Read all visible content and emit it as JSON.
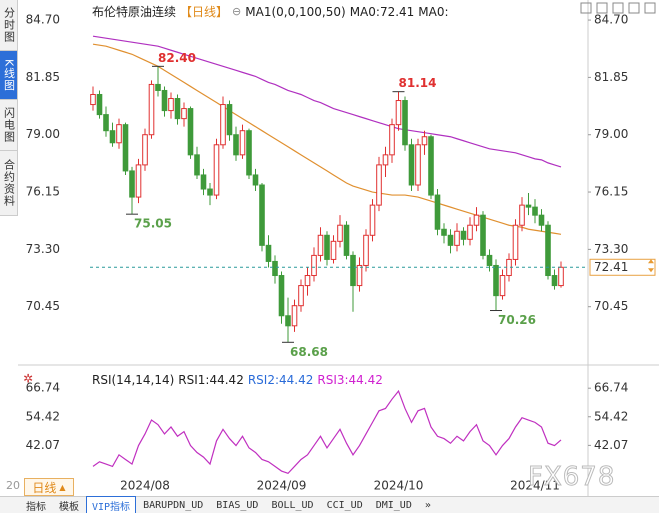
{
  "sidebar": {
    "tabs": [
      "分时图",
      "K线图",
      "闪电图",
      "合约资料"
    ]
  },
  "chart_data": [
    {
      "type": "candlestick",
      "title": "布伦特原油连续",
      "period": "【日线】",
      "indicator_labels": [
        "MA1(0,0,100,50)",
        "MA0:72.41",
        "MA0:"
      ],
      "up_color": "#e03030",
      "down_color": "#3f9a3a",
      "ylim": [
        67.8,
        85.3
      ],
      "yticks": [
        {
          "value": 84.7,
          "label": "84.70"
        },
        81.85,
        {
          "value": 79.0,
          "label": "79.00"
        },
        76.15,
        {
          "value": 73.3,
          "label": "73.30"
        },
        70.45
      ],
      "grid": false,
      "candles": [
        [
          80.5,
          81.4,
          80.2,
          81.0
        ],
        [
          81.0,
          81.2,
          79.8,
          80.0
        ],
        [
          80.0,
          80.4,
          78.9,
          79.2
        ],
        [
          79.2,
          79.6,
          78.4,
          78.6
        ],
        [
          78.6,
          79.8,
          78.3,
          79.5
        ],
        [
          79.5,
          79.6,
          77.0,
          77.2
        ],
        [
          77.2,
          77.4,
          75.05,
          75.9
        ],
        [
          75.9,
          77.8,
          75.6,
          77.5
        ],
        [
          77.5,
          79.3,
          77.2,
          79.0
        ],
        [
          79.0,
          81.7,
          78.8,
          81.5
        ],
        [
          81.5,
          82.4,
          80.9,
          81.2
        ],
        [
          81.2,
          81.4,
          79.9,
          80.2
        ],
        [
          80.2,
          81.1,
          79.8,
          80.8
        ],
        [
          80.8,
          81.0,
          79.5,
          79.8
        ],
        [
          79.8,
          80.6,
          79.4,
          80.3
        ],
        [
          80.3,
          80.4,
          77.8,
          78.0
        ],
        [
          78.0,
          78.4,
          76.8,
          77.0
        ],
        [
          77.0,
          77.3,
          76.0,
          76.3
        ],
        [
          76.3,
          76.6,
          75.5,
          76.0
        ],
        [
          76.0,
          78.8,
          75.8,
          78.5
        ],
        [
          78.5,
          80.9,
          78.3,
          80.5
        ],
        [
          80.5,
          80.7,
          78.7,
          79.0
        ],
        [
          79.0,
          79.4,
          77.7,
          78.0
        ],
        [
          78.0,
          79.5,
          77.8,
          79.2
        ],
        [
          79.2,
          79.3,
          76.8,
          77.0
        ],
        [
          77.0,
          77.3,
          76.2,
          76.5
        ],
        [
          76.5,
          76.6,
          73.2,
          73.5
        ],
        [
          73.5,
          74.0,
          72.4,
          72.7
        ],
        [
          72.7,
          73.0,
          71.6,
          72.0
        ],
        [
          72.0,
          72.2,
          69.6,
          70.0
        ],
        [
          70.0,
          70.9,
          68.68,
          69.5
        ],
        [
          69.5,
          70.8,
          69.2,
          70.5
        ],
        [
          70.5,
          71.8,
          70.2,
          71.5
        ],
        [
          71.5,
          72.4,
          71.0,
          72.0
        ],
        [
          72.0,
          73.4,
          71.7,
          73.0
        ],
        [
          73.0,
          74.4,
          72.7,
          74.0
        ],
        [
          74.0,
          74.2,
          72.5,
          72.8
        ],
        [
          72.8,
          74.0,
          72.6,
          73.7
        ],
        [
          73.7,
          75.0,
          73.4,
          74.5
        ],
        [
          74.5,
          74.7,
          72.8,
          73.0
        ],
        [
          73.0,
          73.2,
          70.2,
          71.5
        ],
        [
          71.5,
          72.9,
          71.2,
          72.5
        ],
        [
          72.5,
          74.3,
          72.2,
          74.0
        ],
        [
          74.0,
          75.8,
          73.7,
          75.5
        ],
        [
          75.5,
          77.9,
          75.2,
          77.5
        ],
        [
          77.5,
          78.4,
          76.9,
          78.0
        ],
        [
          78.0,
          79.8,
          77.6,
          79.5
        ],
        [
          79.5,
          81.14,
          79.2,
          80.7
        ],
        [
          80.7,
          80.9,
          78.2,
          78.5
        ],
        [
          78.5,
          78.8,
          76.2,
          76.5
        ],
        [
          76.5,
          78.8,
          76.2,
          78.5
        ],
        [
          78.5,
          79.2,
          78.0,
          78.9
        ],
        [
          78.9,
          79.0,
          75.8,
          76.0
        ],
        [
          76.0,
          76.3,
          74.0,
          74.3
        ],
        [
          74.3,
          74.6,
          73.6,
          74.0
        ],
        [
          74.0,
          74.3,
          73.1,
          73.5
        ],
        [
          73.5,
          74.6,
          73.2,
          74.2
        ],
        [
          74.2,
          74.4,
          73.5,
          73.8
        ],
        [
          73.8,
          74.9,
          73.5,
          74.5
        ],
        [
          74.5,
          75.4,
          74.2,
          75.0
        ],
        [
          75.0,
          75.2,
          72.8,
          73.0
        ],
        [
          73.0,
          73.3,
          72.2,
          72.5
        ],
        [
          72.5,
          72.8,
          70.26,
          71.0
        ],
        [
          71.0,
          72.3,
          70.8,
          72.0
        ],
        [
          72.0,
          73.1,
          71.7,
          72.8
        ],
        [
          72.8,
          74.8,
          72.5,
          74.5
        ],
        [
          74.5,
          75.9,
          74.2,
          75.5
        ],
        [
          75.5,
          76.1,
          75.0,
          75.4
        ],
        [
          75.4,
          75.8,
          74.6,
          75.0
        ],
        [
          75.0,
          75.3,
          74.2,
          74.5
        ],
        [
          74.5,
          74.7,
          71.8,
          72.0
        ],
        [
          72.0,
          72.3,
          71.3,
          71.5
        ],
        [
          71.5,
          72.7,
          71.4,
          72.41
        ]
      ],
      "series": [
        {
          "color": "#b030c0",
          "values": [
            83.9,
            83.85,
            83.8,
            83.75,
            83.7,
            83.65,
            83.6,
            83.55,
            83.5,
            83.45,
            83.4,
            83.3,
            83.2,
            83.1,
            83.0,
            82.9,
            82.8,
            82.7,
            82.6,
            82.5,
            82.4,
            82.3,
            82.2,
            82.1,
            82.0,
            81.9,
            81.75,
            81.6,
            81.5,
            81.35,
            81.2,
            81.1,
            81.0,
            80.85,
            80.7,
            80.6,
            80.45,
            80.3,
            80.2,
            80.1,
            80.0,
            79.9,
            79.8,
            79.7,
            79.6,
            79.5,
            79.4,
            79.3,
            79.25,
            79.2,
            79.15,
            79.1,
            79.05,
            79.0,
            78.95,
            78.9,
            78.8,
            78.7,
            78.6,
            78.5,
            78.4,
            78.3,
            78.25,
            78.2,
            78.15,
            78.1,
            78.0,
            77.9,
            77.8,
            77.75,
            77.6,
            77.5,
            77.4
          ]
        },
        {
          "color": "#e09030",
          "values": [
            83.5,
            83.45,
            83.4,
            83.3,
            83.2,
            83.1,
            83.0,
            82.85,
            82.7,
            82.55,
            82.4,
            82.2,
            82.0,
            81.8,
            81.6,
            81.4,
            81.2,
            81.0,
            80.8,
            80.6,
            80.4,
            80.2,
            80.0,
            79.8,
            79.6,
            79.4,
            79.2,
            79.0,
            78.8,
            78.6,
            78.4,
            78.2,
            78.0,
            77.8,
            77.6,
            77.4,
            77.2,
            77.0,
            76.8,
            76.6,
            76.45,
            76.35,
            76.25,
            76.15,
            76.1,
            76.05,
            76.0,
            76.0,
            76.0,
            75.95,
            75.9,
            75.8,
            75.7,
            75.6,
            75.5,
            75.4,
            75.3,
            75.2,
            75.1,
            75.0,
            74.9,
            74.8,
            74.7,
            74.6,
            74.5,
            74.45,
            74.4,
            74.3,
            74.25,
            74.2,
            74.15,
            74.1,
            74.05
          ]
        }
      ],
      "annotations": [
        {
          "value": 82.4,
          "label": "82.40",
          "color": "#e03030"
        },
        {
          "value": 75.05,
          "label": "75.05",
          "color": "#5aa04a"
        },
        {
          "value": 68.68,
          "label": "68.68",
          "color": "#5aa04a"
        },
        {
          "value": 81.14,
          "label": "81.14",
          "color": "#e03030"
        },
        {
          "value": 70.26,
          "label": "70.26",
          "color": "#5aa04a"
        }
      ]
    },
    {
      "type": "line",
      "title": "RSI(14,14,14)",
      "legend": [
        {
          "text": "RSI1:44.42",
          "color": "#222222"
        },
        {
          "text": "RSI2:44.42",
          "color": "#2a6bd8"
        },
        {
          "text": "RSI3:44.42",
          "color": "#d020d0"
        }
      ],
      "ylim": [
        28,
        72
      ],
      "yticks": [
        66.74,
        54.42,
        42.07
      ],
      "categories": [
        null,
        null,
        null,
        null,
        null,
        null,
        null,
        null,
        "2024/08",
        null,
        null,
        null,
        null,
        null,
        null,
        null,
        null,
        null,
        null,
        null,
        null,
        null,
        null,
        null,
        null,
        null,
        null,
        null,
        null,
        "2024/09",
        null,
        null,
        null,
        null,
        null,
        null,
        null,
        null,
        null,
        null,
        null,
        null,
        null,
        null,
        null,
        null,
        null,
        "2024/10",
        null,
        null,
        null,
        null,
        null,
        null,
        null,
        null,
        null,
        null,
        null,
        null,
        null,
        null,
        null,
        null,
        null,
        null,
        null,
        null,
        "2024/11",
        null,
        null,
        null,
        null
      ],
      "series": [
        {
          "color": "#c030c0",
          "values": [
            33,
            35,
            34,
            33,
            38,
            36,
            34,
            42,
            47,
            53,
            51,
            47,
            50,
            46,
            48,
            42,
            39,
            37,
            34,
            44,
            49,
            45,
            42,
            46,
            41,
            39,
            36,
            35,
            33,
            31,
            30,
            33,
            36,
            38,
            42,
            46,
            41,
            45,
            49,
            43,
            38,
            42,
            47,
            52,
            57,
            58,
            62,
            65.5,
            58,
            52,
            57,
            58,
            50,
            46,
            45,
            43,
            46,
            44,
            48,
            51,
            44,
            42,
            38,
            42,
            45,
            50,
            54,
            53,
            52,
            50,
            43,
            42,
            44.42
          ]
        }
      ]
    }
  ],
  "toolbar": {
    "left_number": "20",
    "period_button": "日线",
    "watermark": "FX678",
    "tabs": [
      "指标",
      "模板",
      "VIP指标",
      "BARUPDN_UD",
      "BIAS_UD",
      "BOLL_UD",
      "CCI_UD",
      "DMI_UD",
      "»"
    ]
  }
}
